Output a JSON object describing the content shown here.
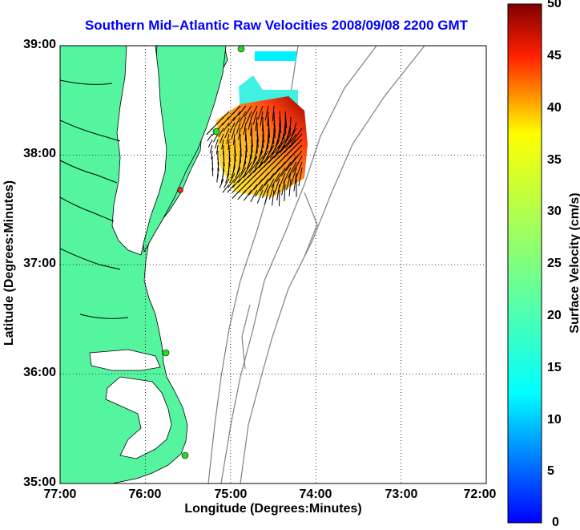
{
  "title": "Southern Mid–Atlantic Raw Velocities 2008/09/08 2200 GMT",
  "xaxis": {
    "label": "Longitude (Degrees:Minutes)",
    "ticks": [
      "77:00",
      "76:00",
      "75:00",
      "74:00",
      "73:00",
      "72:00"
    ]
  },
  "yaxis": {
    "label": "Latitude (Degrees:Minutes)",
    "ticks": [
      "39:00",
      "38:00",
      "37:00",
      "36:00",
      "35:00"
    ]
  },
  "colorbar": {
    "label": "Surface Velocity (cm/s)",
    "ticks": [
      "50",
      "45",
      "40",
      "35",
      "30",
      "25",
      "20",
      "15",
      "10",
      "5",
      "0"
    ],
    "range": [
      0,
      50
    ]
  },
  "colors": {
    "title": "#0000ff",
    "land": "#55f5a0",
    "bathymetry": "#808080",
    "station": "#22dd22",
    "station_inactive": "#e03020"
  },
  "grid": "dotted",
  "extent": {
    "lon": [
      -77,
      -72
    ],
    "lat": [
      35,
      39
    ]
  }
}
